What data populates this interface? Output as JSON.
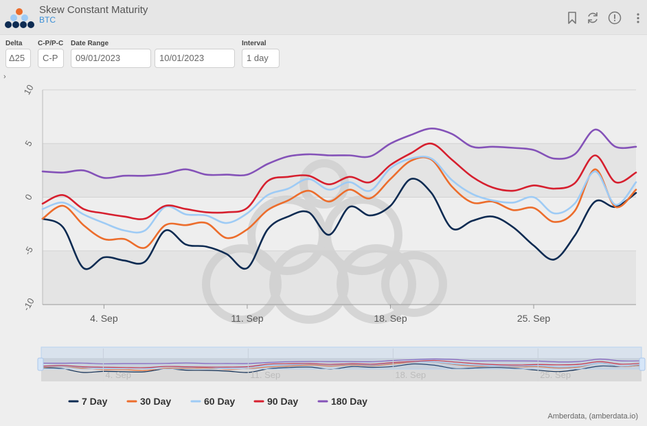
{
  "header": {
    "title": "Skew Constant Maturity",
    "subtitle": "BTC"
  },
  "controls": {
    "delta": {
      "label": "Delta",
      "value": "Δ25"
    },
    "cp": {
      "label": "C-P/P-C",
      "value": "C-P"
    },
    "date_range": {
      "label": "Date Range",
      "start": "09/01/2023",
      "end": "10/01/2023"
    },
    "interval": {
      "label": "Interval",
      "value": "1 day"
    }
  },
  "credit": "Amberdata, (amberdata.io)",
  "colors": {
    "7 Day": "#0d2b52",
    "30 Day": "#ec6d2c",
    "60 Day": "#9ecbf5",
    "90 Day": "#d61f2e",
    "180 Day": "#8452b8"
  },
  "chart_data": {
    "type": "line",
    "title": "",
    "xlabel": "",
    "ylabel": "",
    "ylim": [
      -10,
      10
    ],
    "yticks": [
      10,
      5,
      0,
      -5,
      -10
    ],
    "xlim": [
      "2023-09-01",
      "2023-09-30"
    ],
    "xticks": [
      {
        "date": "2023-09-04",
        "label": "4. Sep"
      },
      {
        "date": "2023-09-11",
        "label": "11. Sep"
      },
      {
        "date": "2023-09-18",
        "label": "18. Sep"
      },
      {
        "date": "2023-09-25",
        "label": "25. Sep"
      }
    ],
    "grid": true,
    "legend": "bottom-left",
    "x": [
      "2023-09-01",
      "2023-09-02",
      "2023-09-03",
      "2023-09-04",
      "2023-09-05",
      "2023-09-06",
      "2023-09-07",
      "2023-09-08",
      "2023-09-09",
      "2023-09-10",
      "2023-09-11",
      "2023-09-12",
      "2023-09-13",
      "2023-09-14",
      "2023-09-15",
      "2023-09-16",
      "2023-09-17",
      "2023-09-18",
      "2023-09-19",
      "2023-09-20",
      "2023-09-21",
      "2023-09-22",
      "2023-09-23",
      "2023-09-24",
      "2023-09-25",
      "2023-09-26",
      "2023-09-27",
      "2023-09-28",
      "2023-09-29",
      "2023-09-30"
    ],
    "series": [
      {
        "name": "7 Day",
        "values": [
          -2.0,
          -2.8,
          -6.6,
          -5.6,
          -5.9,
          -6.0,
          -3.1,
          -4.4,
          -4.6,
          -5.3,
          -6.6,
          -3.0,
          -1.8,
          -1.4,
          -3.5,
          -0.9,
          -1.7,
          -0.8,
          1.7,
          0.4,
          -2.9,
          -2.2,
          -1.8,
          -2.8,
          -4.5,
          -5.8,
          -3.6,
          -0.4,
          -0.9,
          0.4
        ]
      },
      {
        "name": "30 Day",
        "values": [
          -2.0,
          -0.8,
          -2.6,
          -3.9,
          -3.9,
          -4.7,
          -2.6,
          -2.6,
          -2.4,
          -3.8,
          -3.0,
          -1.2,
          -0.3,
          0.6,
          -0.4,
          0.7,
          -0.1,
          1.7,
          3.4,
          3.5,
          1.0,
          -0.5,
          -0.4,
          -1.2,
          -1.0,
          -2.3,
          -1.3,
          2.6,
          -0.9,
          0.7
        ]
      },
      {
        "name": "60 Day",
        "values": [
          -1.1,
          -0.5,
          -1.6,
          -2.4,
          -3.1,
          -3.1,
          -0.9,
          -1.6,
          -1.7,
          -2.4,
          -1.5,
          0.2,
          0.8,
          1.7,
          0.7,
          1.4,
          0.6,
          2.7,
          3.6,
          3.6,
          1.6,
          0.3,
          -0.3,
          -0.5,
          0.0,
          -1.5,
          -0.6,
          2.4,
          -0.7,
          1.4
        ]
      },
      {
        "name": "90 Day",
        "values": [
          -0.6,
          0.2,
          -1.1,
          -1.5,
          -1.8,
          -2.0,
          -0.8,
          -1.1,
          -1.4,
          -1.4,
          -1.0,
          1.5,
          1.9,
          2.0,
          1.2,
          1.9,
          1.4,
          3.0,
          4.1,
          5.0,
          3.5,
          1.9,
          0.9,
          0.6,
          1.1,
          0.8,
          1.3,
          3.9,
          1.4,
          2.3
        ]
      },
      {
        "name": "180 Day",
        "values": [
          2.4,
          2.3,
          2.5,
          1.8,
          2.0,
          2.0,
          2.2,
          2.6,
          2.1,
          2.1,
          2.1,
          3.1,
          3.8,
          4.0,
          3.9,
          3.9,
          3.8,
          5.0,
          5.8,
          6.4,
          5.9,
          4.7,
          4.7,
          4.6,
          4.4,
          3.6,
          4.0,
          6.3,
          4.7,
          4.7
        ]
      }
    ]
  }
}
